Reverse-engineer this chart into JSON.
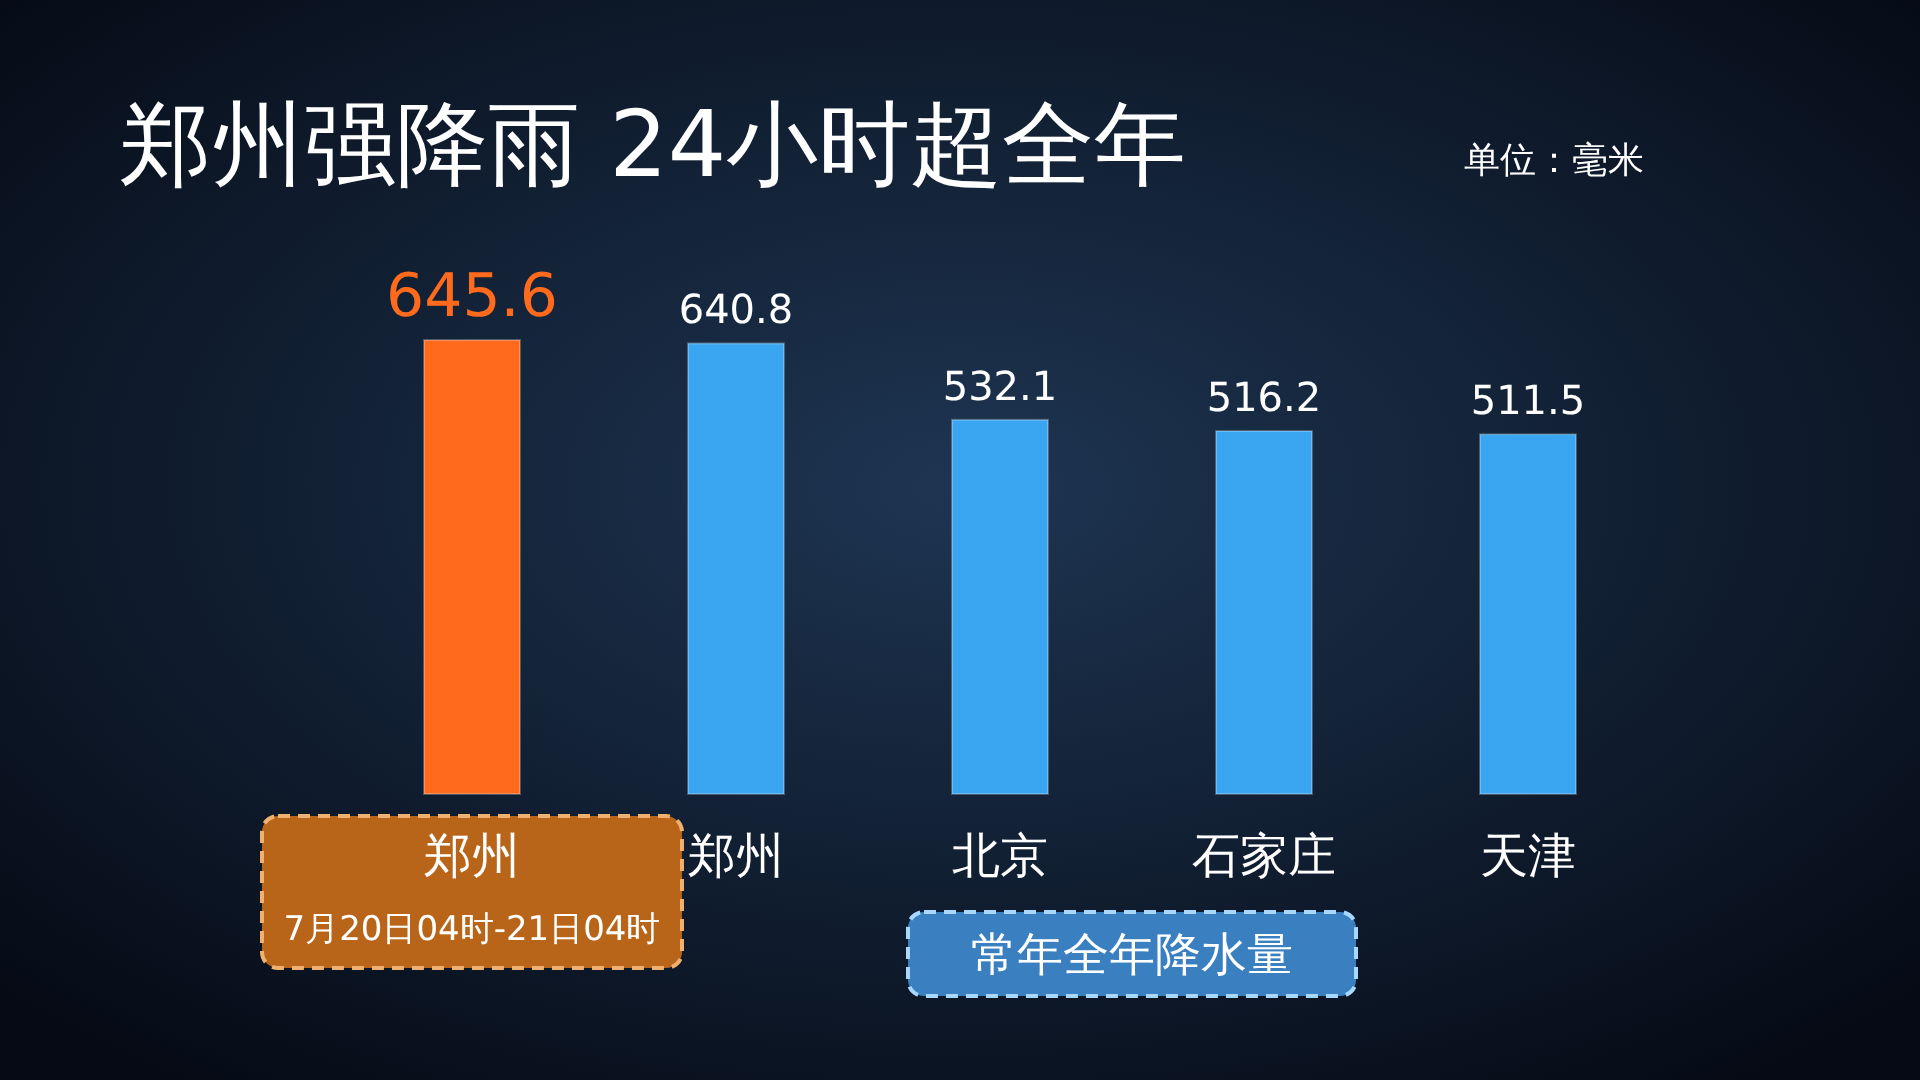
{
  "chart_data": {
    "type": "bar",
    "title": "郑州强降雨 24小时超全年",
    "annotations": [
      "单位：毫米",
      "常年全年降水量"
    ],
    "categories": [
      "郑州\n7月20日04时-21日04时",
      "郑州",
      "北京",
      "石家庄",
      "天津"
    ],
    "values": [
      645.6,
      640.8,
      532.1,
      516.2,
      511.5
    ],
    "colors": [
      "#ff6a1c",
      "#3aa6f2",
      "#3aa6f2",
      "#3aa6f2",
      "#3aa6f2"
    ],
    "data_labels": true
  }
}
